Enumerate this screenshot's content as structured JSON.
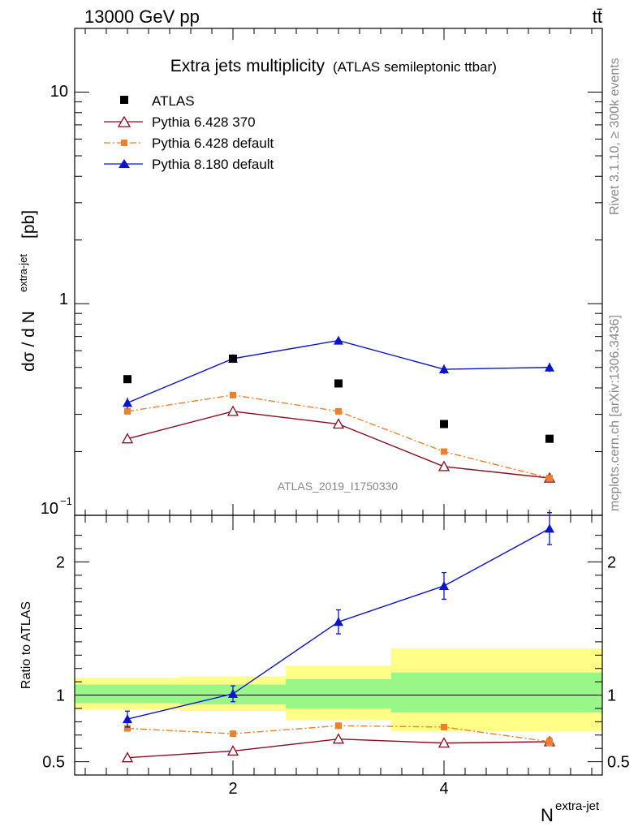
{
  "header": {
    "left": "13000 GeV pp",
    "right": "tt̄"
  },
  "side_text": {
    "rivet": "Rivet 3.1.10, ≥ 300k events",
    "mcplots": "mcplots.cern.ch [arXiv:1306.3436]"
  },
  "chart_data": [
    {
      "type": "line",
      "title": "Extra jets multiplicity",
      "subtitle": "(ATLAS semileptonic ttbar)",
      "ylabel_main": "dσ / d N",
      "ylabel_sup": "extra-jet",
      "ylabel_unit": "[pb]",
      "watermark": "ATLAS_2019_I1750330",
      "yscale": "log",
      "ylim": [
        0.1,
        20
      ],
      "xlim": [
        0.5,
        5.5
      ],
      "ytick_labels": [
        "10",
        "1"
      ],
      "ytick_bottom_base": "10",
      "ytick_bottom_exp": "−1",
      "legend_position": "top-left",
      "x": [
        1,
        2,
        3,
        4,
        5
      ],
      "data": {
        "name": "ATLAS",
        "values": [
          0.44,
          0.55,
          0.42,
          0.27,
          0.23
        ],
        "color": "#000000"
      },
      "series": [
        {
          "name": "Pythia 6.428 370",
          "values": [
            0.23,
            0.31,
            0.27,
            0.17,
            0.15
          ],
          "errors": [
            0,
            0,
            0,
            0,
            0
          ],
          "color": "#8b0a1e",
          "marker": "open-triangle",
          "dash": ""
        },
        {
          "name": "Pythia 6.428 default",
          "values": [
            0.31,
            0.37,
            0.31,
            0.2,
            0.15
          ],
          "errors": [
            0,
            0,
            0,
            0,
            0
          ],
          "color": "#f07f2a",
          "marker": "square",
          "dash": "8,3,2,3"
        },
        {
          "name": "Pythia 8.180 default",
          "values": [
            0.34,
            0.55,
            0.67,
            0.49,
            0.5
          ],
          "errors": [
            0.02,
            0.025,
            0.025,
            0.025,
            0.025
          ],
          "color": "#0a14c8",
          "marker": "triangle",
          "dash": ""
        }
      ]
    },
    {
      "type": "line",
      "ylabel": "Ratio to ATLAS",
      "xlabel_main": "N",
      "xlabel_sup": "extra-jet",
      "ylim": [
        0.4,
        2.35
      ],
      "yticks": [
        0.5,
        1,
        2
      ],
      "ytick_labels": [
        "0.5",
        "1",
        "2"
      ],
      "xticks": [
        2,
        4
      ],
      "xtick_labels": [
        "2",
        "4"
      ],
      "bands": [
        {
          "x0": 0.5,
          "x1": 1.5,
          "yellow": [
            0.89,
            1.13
          ],
          "green": [
            0.94,
            1.08
          ]
        },
        {
          "x0": 1.5,
          "x1": 2.5,
          "yellow": [
            0.88,
            1.14
          ],
          "green": [
            0.93,
            1.08
          ]
        },
        {
          "x0": 2.5,
          "x1": 3.5,
          "yellow": [
            0.81,
            1.22
          ],
          "green": [
            0.9,
            1.12
          ]
        },
        {
          "x0": 3.5,
          "x1": 5.5,
          "yellow": [
            0.73,
            1.35
          ],
          "green": [
            0.87,
            1.17
          ]
        }
      ],
      "x": [
        1,
        2,
        3,
        4,
        5
      ],
      "series": [
        {
          "name": "Pythia 6.428 370",
          "values": [
            0.53,
            0.58,
            0.67,
            0.64,
            0.65
          ],
          "errors": [
            0,
            0,
            0,
            0,
            0
          ],
          "color": "#8b0a1e",
          "marker": "open-triangle",
          "dash": ""
        },
        {
          "name": "Pythia 6.428 default",
          "values": [
            0.75,
            0.71,
            0.77,
            0.76,
            0.65
          ],
          "errors": [
            0,
            0,
            0.02,
            0.02,
            0.03
          ],
          "color": "#f07f2a",
          "marker": "square",
          "dash": "8,3,2,3"
        },
        {
          "name": "Pythia 8.180 default",
          "values": [
            0.82,
            1.01,
            1.55,
            1.82,
            2.25
          ],
          "errors": [
            0.06,
            0.06,
            0.09,
            0.1,
            0.12
          ],
          "color": "#0a14c8",
          "marker": "triangle",
          "dash": ""
        }
      ]
    }
  ]
}
